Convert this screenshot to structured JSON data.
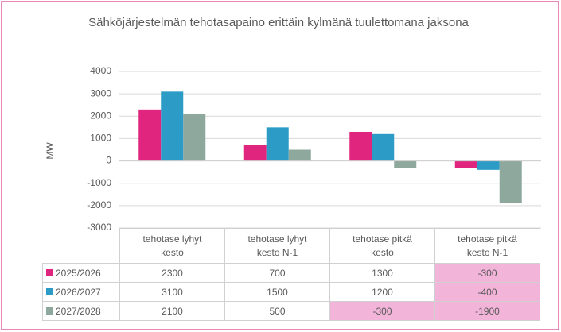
{
  "chart_data": {
    "type": "bar",
    "title": "Sähköjärjestelmän tehotasapaino erittäin kylmänä tuulettomana jaksona",
    "y_label": "MW",
    "categories": [
      "tehotase lyhyt kesto",
      "tehotase lyhyt kesto N-1",
      "tehotase pitkä kesto",
      "tehotase pitkä kesto N-1"
    ],
    "series": [
      {
        "name": "2025/2026",
        "color": "#e0257f",
        "values": [
          2300,
          700,
          1300,
          -300
        ]
      },
      {
        "name": "2026/2027",
        "color": "#2c9bc6",
        "values": [
          3100,
          1500,
          1200,
          -400
        ]
      },
      {
        "name": "2027/2028",
        "color": "#8fa89e",
        "values": [
          2100,
          500,
          -300,
          -1900
        ]
      }
    ],
    "ylim": [
      -3000,
      4000
    ],
    "yticks": [
      -3000,
      -2000,
      -1000,
      0,
      1000,
      2000,
      3000,
      4000
    ],
    "grid": true,
    "data_table": true,
    "negative_highlight": "#f2b4d8"
  }
}
